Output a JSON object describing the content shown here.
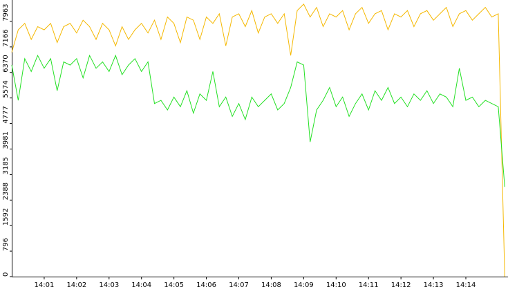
{
  "chart_data": {
    "type": "line",
    "x": [
      840,
      840.2,
      840.4,
      840.6,
      840.8,
      841,
      841.2,
      841.4,
      841.6,
      841.8,
      842,
      842.2,
      842.4,
      842.6,
      842.8,
      843,
      843.2,
      843.4,
      843.6,
      843.8,
      844,
      844.2,
      844.4,
      844.6,
      844.8,
      845,
      845.2,
      845.4,
      845.6,
      845.8,
      846,
      846.2,
      846.4,
      846.6,
      846.8,
      847,
      847.2,
      847.4,
      847.6,
      847.8,
      848,
      848.2,
      848.4,
      848.6,
      848.8,
      849,
      849.2,
      849.4,
      849.6,
      849.8,
      850,
      850.2,
      850.4,
      850.6,
      850.8,
      851,
      851.2,
      851.4,
      851.6,
      851.8,
      852,
      852.2,
      852.4,
      852.6,
      852.8,
      853,
      853.2,
      853.4,
      853.6,
      853.8,
      854,
      854.2,
      854.4,
      854.6,
      854.8,
      855,
      855.2
    ],
    "series": [
      {
        "color": "#f5b800",
        "values": [
          7000,
          7700,
          7900,
          7400,
          7800,
          7700,
          7900,
          7300,
          7800,
          7900,
          7600,
          8000,
          7800,
          7400,
          7900,
          7700,
          7200,
          7800,
          7400,
          7700,
          7900,
          7600,
          8000,
          7400,
          8100,
          7900,
          7300,
          8100,
          8000,
          7400,
          8100,
          7900,
          8200,
          7200,
          8100,
          8200,
          7800,
          8300,
          7600,
          8100,
          8200,
          7900,
          8200,
          6900,
          8300,
          8500,
          8100,
          8400,
          7800,
          8200,
          8100,
          8300,
          7700,
          8200,
          8400,
          7900,
          8200,
          8300,
          7700,
          8200,
          8100,
          8300,
          7800,
          8200,
          8300,
          8000,
          8200,
          8400,
          7800,
          8200,
          8300,
          8000,
          8200,
          8400,
          8100,
          8200,
          0
        ]
      },
      {
        "color": "#22e022",
        "values": [
          6600,
          5500,
          6800,
          6400,
          6900,
          6500,
          6800,
          5800,
          6700,
          6600,
          6800,
          6200,
          6900,
          6500,
          6700,
          6400,
          6900,
          6300,
          6600,
          6800,
          6400,
          6700,
          5400,
          5500,
          5200,
          5600,
          5300,
          5800,
          5100,
          5700,
          5500,
          6400,
          5300,
          5600,
          5000,
          5400,
          4900,
          5600,
          5300,
          5500,
          5700,
          5200,
          5400,
          5900,
          6700,
          6600,
          4200,
          5200,
          5500,
          5900,
          5300,
          5600,
          5000,
          5400,
          5700,
          5200,
          5800,
          5500,
          5900,
          5400,
          5600,
          5300,
          5700,
          5500,
          5800,
          5400,
          5700,
          5600,
          5300,
          6500,
          5500,
          5600,
          5300,
          5500,
          5400,
          5300,
          2800
        ]
      }
    ],
    "xlim": [
      840,
      855.3
    ],
    "xticks": [
      {
        "value": 841,
        "label": "14:01"
      },
      {
        "value": 842,
        "label": "14:02"
      },
      {
        "value": 843,
        "label": "14:03"
      },
      {
        "value": 844,
        "label": "14:04"
      },
      {
        "value": 845,
        "label": "14:05"
      },
      {
        "value": 846,
        "label": "14:06"
      },
      {
        "value": 847,
        "label": "14:07"
      },
      {
        "value": 848,
        "label": "14:08"
      },
      {
        "value": 849,
        "label": "14:09"
      },
      {
        "value": 850,
        "label": "14:10"
      },
      {
        "value": 851,
        "label": "14:11"
      },
      {
        "value": 852,
        "label": "14:12"
      },
      {
        "value": 853,
        "label": "14:13"
      },
      {
        "value": 854,
        "label": "14:14"
      }
    ],
    "ylim": [
      0,
      8630
    ],
    "yticks": [
      0,
      796,
      1592,
      2388,
      3185,
      3981,
      4777,
      5574,
      6370,
      7166,
      7963
    ]
  }
}
